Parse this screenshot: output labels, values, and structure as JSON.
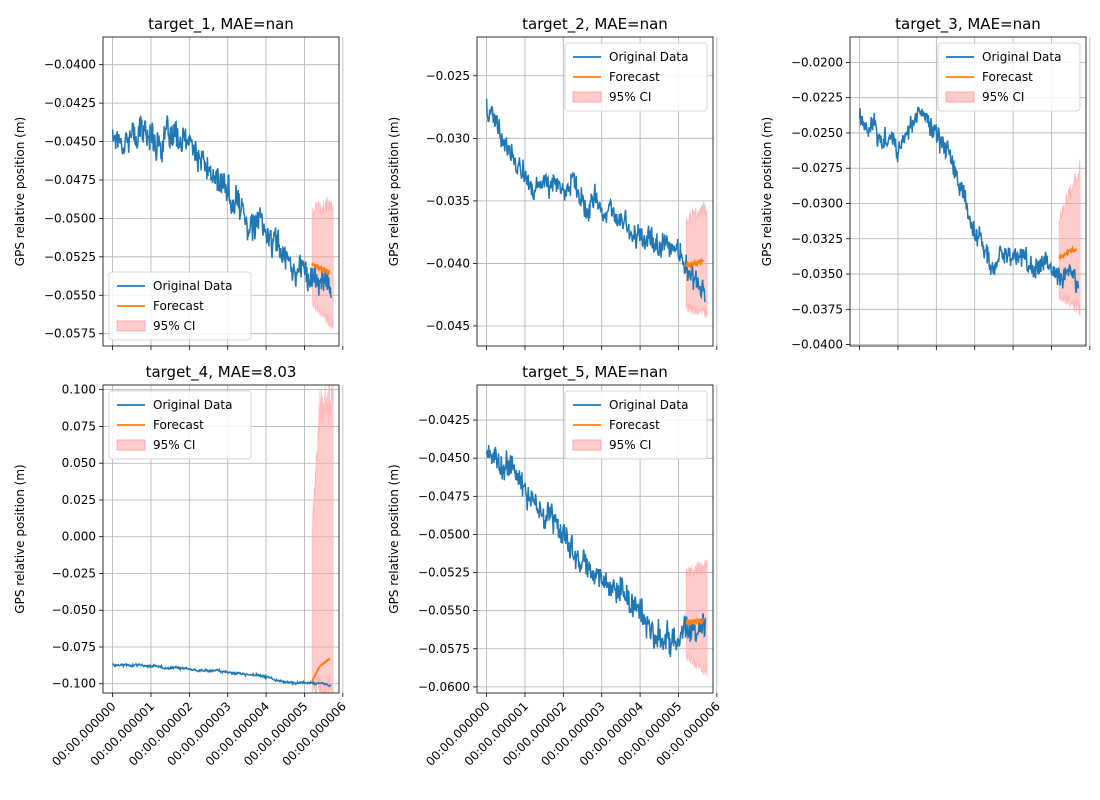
{
  "colors": {
    "original": "#1f77b4",
    "forecast": "#ff7f0e",
    "ci": "#ff9999",
    "grid": "#b0b0b0"
  },
  "chart_data": [
    {
      "type": "line",
      "title": "target_1, MAE=nan",
      "ylabel": "GPS relative position (m)",
      "ylim": [
        -0.0583,
        -0.0382
      ],
      "yticks": [
        "−0.0575",
        "−0.0550",
        "−0.0525",
        "−0.0500",
        "−0.0475",
        "−0.0450",
        "−0.0425",
        "−0.0400"
      ],
      "ytick_values": [
        -0.0575,
        -0.055,
        -0.0525,
        -0.05,
        -0.0475,
        -0.045,
        -0.0425,
        -0.04
      ],
      "xlim": [
        -2.5e-07,
        5.9e-06
      ],
      "xtick_values": [
        0,
        1e-06,
        2e-06,
        3e-06,
        4e-06,
        5e-06,
        6e-06
      ],
      "xticks": [],
      "legend_position": "lower-left",
      "legend": [
        "Original Data",
        "Forecast",
        "95% CI"
      ],
      "grid": true,
      "series": [
        {
          "name": "Original Data",
          "x": [
            0,
            1e-06,
            2e-06,
            3e-06,
            4e-06,
            4.8e-06,
            5.7e-06
          ],
          "y": [
            -0.0445,
            -0.0445,
            -0.0455,
            -0.0485,
            -0.051,
            -0.053,
            -0.0545
          ],
          "noise": 0.0015
        },
        {
          "name": "Forecast",
          "x": [
            5.2e-06,
            5.65e-06
          ],
          "y": [
            -0.053,
            -0.0535
          ],
          "noise": 0.0003
        },
        {
          "name": "95% CI",
          "x": [
            5.2e-06,
            5.75e-06
          ],
          "upper": [
            -0.0495,
            -0.049
          ],
          "lower": [
            -0.0555,
            -0.057
          ]
        }
      ]
    },
    {
      "type": "line",
      "title": "target_2, MAE=nan",
      "ylabel": "GPS relative position (m)",
      "ylim": [
        -0.0466,
        -0.0219
      ],
      "yticks": [
        "−0.045",
        "−0.040",
        "−0.035",
        "−0.030",
        "−0.025"
      ],
      "ytick_values": [
        -0.045,
        -0.04,
        -0.035,
        -0.03,
        -0.025
      ],
      "xlim": [
        -2.5e-07,
        5.9e-06
      ],
      "xtick_values": [
        0,
        1e-06,
        2e-06,
        3e-06,
        4e-06,
        5e-06,
        6e-06
      ],
      "xticks": [],
      "legend_position": "top-right",
      "legend": [
        "Original Data",
        "Forecast",
        "95% CI"
      ],
      "grid": true,
      "series": [
        {
          "name": "Original Data",
          "x": [
            0,
            5e-07,
            1e-06,
            2e-06,
            3e-06,
            4e-06,
            4.8e-06,
            5.7e-06
          ],
          "y": [
            -0.027,
            -0.031,
            -0.033,
            -0.034,
            -0.036,
            -0.0375,
            -0.039,
            -0.0425
          ],
          "noise": 0.0015
        },
        {
          "name": "Forecast",
          "x": [
            5.2e-06,
            5.65e-06
          ],
          "y": [
            -0.0402,
            -0.0398
          ],
          "noise": 0.0003
        },
        {
          "name": "95% CI",
          "x": [
            5.2e-06,
            5.75e-06
          ],
          "upper": [
            -0.0365,
            -0.0355
          ],
          "lower": [
            -0.0435,
            -0.044
          ]
        }
      ]
    },
    {
      "type": "line",
      "title": "target_3, MAE=nan",
      "ylabel": "GPS relative position (m)",
      "ylim": [
        -0.0401,
        -0.0182
      ],
      "yticks": [
        "−0.0400",
        "−0.0375",
        "−0.0350",
        "−0.0325",
        "−0.0300",
        "−0.0275",
        "−0.0250",
        "−0.0225",
        "−0.0200"
      ],
      "ytick_values": [
        -0.04,
        -0.0375,
        -0.035,
        -0.0325,
        -0.03,
        -0.0275,
        -0.025,
        -0.0225,
        -0.02
      ],
      "xlim": [
        -2.5e-07,
        5.9e-06
      ],
      "xtick_values": [
        0,
        1e-06,
        2e-06,
        3e-06,
        4e-06,
        5e-06,
        6e-06
      ],
      "xticks": [],
      "legend_position": "top-right",
      "legend": [
        "Original Data",
        "Forecast",
        "95% CI"
      ],
      "grid": true,
      "series": [
        {
          "name": "Original Data",
          "x": [
            0,
            1e-06,
            1.5e-06,
            2e-06,
            2.5e-06,
            3e-06,
            3.5e-06,
            4e-06,
            4.8e-06,
            5.7e-06
          ],
          "y": [
            -0.024,
            -0.026,
            -0.0235,
            -0.025,
            -0.028,
            -0.032,
            -0.0345,
            -0.033,
            -0.0345,
            -0.0355
          ],
          "noise": 0.0013
        },
        {
          "name": "Forecast",
          "x": [
            5.2e-06,
            5.65e-06
          ],
          "y": [
            -0.0338,
            -0.0332
          ],
          "noise": 0.0003
        },
        {
          "name": "95% CI",
          "x": [
            5.2e-06,
            5.75e-06
          ],
          "upper": [
            -0.031,
            -0.0275
          ],
          "lower": [
            -0.0365,
            -0.0375
          ]
        }
      ]
    },
    {
      "type": "line",
      "title": "target_4, MAE=8.03",
      "ylabel": "GPS relative position (m)",
      "ylim": [
        -0.1063,
        0.1032
      ],
      "yticks": [
        "−0.100",
        "−0.075",
        "−0.050",
        "−0.025",
        "0.000",
        "0.025",
        "0.050",
        "0.075",
        "0.100"
      ],
      "ytick_values": [
        -0.1,
        -0.075,
        -0.05,
        -0.025,
        0,
        0.025,
        0.05,
        0.075,
        0.1
      ],
      "xlim": [
        -2.5e-07,
        5.9e-06
      ],
      "xtick_values": [
        0,
        1e-06,
        2e-06,
        3e-06,
        4e-06,
        5e-06,
        6e-06
      ],
      "xticks": [
        "00:00.000000",
        "00:00.000001",
        "00:00.000002",
        "00:00.000003",
        "00:00.000004",
        "00:00.000005",
        "00:00.000006"
      ],
      "legend_position": "top-left",
      "legend": [
        "Original Data",
        "Forecast",
        "95% CI"
      ],
      "grid": true,
      "series": [
        {
          "name": "Original Data",
          "x": [
            0,
            1e-06,
            2e-06,
            3e-06,
            4e-06,
            4.8e-06,
            5.7e-06
          ],
          "y": [
            -0.087,
            -0.088,
            -0.09,
            -0.092,
            -0.096,
            -0.1,
            -0.101
          ],
          "noise": 0.0012
        },
        {
          "name": "Forecast",
          "x": [
            5.2e-06,
            5.4e-06,
            5.65e-06
          ],
          "y": [
            -0.098,
            -0.088,
            -0.083
          ],
          "noise": 0.0008
        },
        {
          "name": "95% CI",
          "x": [
            5.2e-06,
            5.4e-06,
            5.75e-06
          ],
          "upper": [
            0.005,
            0.09,
            0.092
          ],
          "lower": [
            -0.1035,
            -0.104,
            -0.104
          ]
        }
      ]
    },
    {
      "type": "line",
      "title": "target_5, MAE=nan",
      "ylabel": "GPS relative position (m)",
      "ylim": [
        -0.0604,
        -0.0402
      ],
      "yticks": [
        "−0.0600",
        "−0.0575",
        "−0.0550",
        "−0.0525",
        "−0.0500",
        "−0.0475",
        "−0.0450",
        "−0.0425"
      ],
      "ytick_values": [
        -0.06,
        -0.0575,
        -0.055,
        -0.0525,
        -0.05,
        -0.0475,
        -0.045,
        -0.0425
      ],
      "xlim": [
        -2.5e-07,
        5.9e-06
      ],
      "xtick_values": [
        0,
        1e-06,
        2e-06,
        3e-06,
        4e-06,
        5e-06,
        6e-06
      ],
      "xticks": [
        "00:00.000000",
        "00:00.000001",
        "00:00.000002",
        "00:00.000003",
        "00:00.000004",
        "00:00.000005",
        "00:00.000006"
      ],
      "legend_position": "top-right",
      "legend": [
        "Original Data",
        "Forecast",
        "95% CI"
      ],
      "grid": true,
      "series": [
        {
          "name": "Original Data",
          "x": [
            0,
            1e-06,
            2e-06,
            3e-06,
            4e-06,
            4.8e-06,
            5.7e-06
          ],
          "y": [
            -0.0445,
            -0.047,
            -0.05,
            -0.0525,
            -0.0555,
            -0.057,
            -0.056
          ],
          "noise": 0.0014
        },
        {
          "name": "Forecast",
          "x": [
            5.2e-06,
            5.65e-06
          ],
          "y": [
            -0.0557,
            -0.0557
          ],
          "noise": 0.0003
        },
        {
          "name": "95% CI",
          "x": [
            5.2e-06,
            5.75e-06
          ],
          "upper": [
            -0.0525,
            -0.052
          ],
          "lower": [
            -0.058,
            -0.059
          ]
        }
      ]
    }
  ]
}
